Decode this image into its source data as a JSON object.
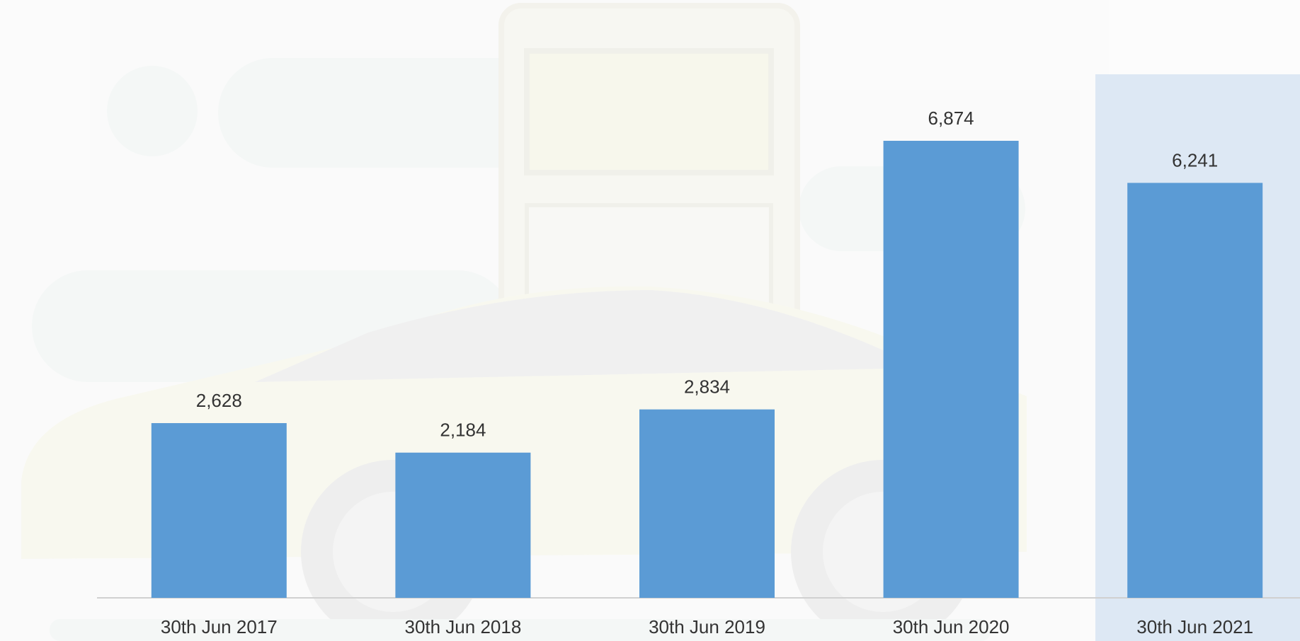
{
  "chart_data": {
    "type": "bar",
    "categories": [
      "30th Jun 2017",
      "30th Jun 2018",
      "30th Jun 2019",
      "30th Jun 2020",
      "30th Jun 2021"
    ],
    "values": [
      2628,
      2184,
      2834,
      6874,
      6241
    ],
    "value_labels": [
      "2,628",
      "2,184",
      "2,834",
      "6,874",
      "6,241"
    ],
    "color": "#5b9bd5"
  }
}
